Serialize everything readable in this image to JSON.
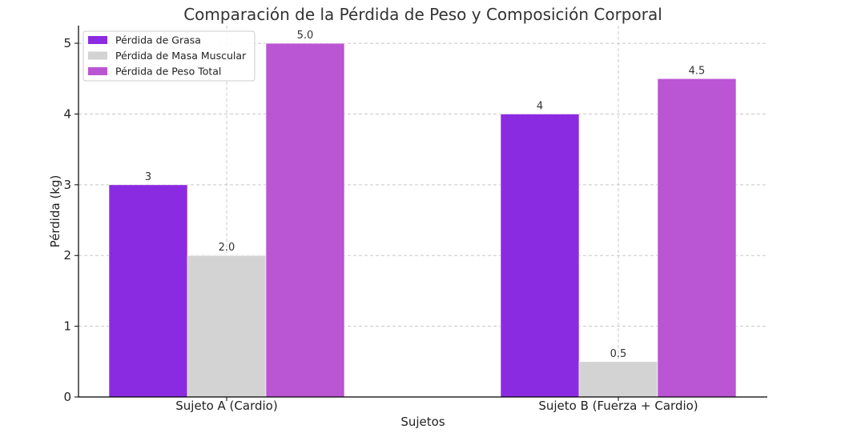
{
  "chart_data": {
    "type": "bar",
    "title": "Comparación de la Pérdida de Peso y Composición Corporal",
    "xlabel": "Sujetos",
    "ylabel": "Pérdida (kg)",
    "categories": [
      "Sujeto A (Cardio)",
      "Sujeto B (Fuerza + Cardio)"
    ],
    "ylim": [
      0,
      5.25
    ],
    "yticks": [
      0,
      1,
      2,
      3,
      4,
      5
    ],
    "grid": true,
    "legend_position": "top-left",
    "series": [
      {
        "name": "Pérdida de Grasa",
        "color": "#8a2be2",
        "values": [
          3,
          4
        ],
        "value_labels": [
          "3",
          "4"
        ]
      },
      {
        "name": "Pérdida de Masa Muscular",
        "color": "#d3d3d3",
        "values": [
          2.0,
          0.5
        ],
        "value_labels": [
          "2.0",
          "0.5"
        ]
      },
      {
        "name": "Pérdida de Peso Total",
        "color": "#ba55d3",
        "values": [
          5.0,
          4.5
        ],
        "value_labels": [
          "5.0",
          "4.5"
        ]
      }
    ]
  }
}
